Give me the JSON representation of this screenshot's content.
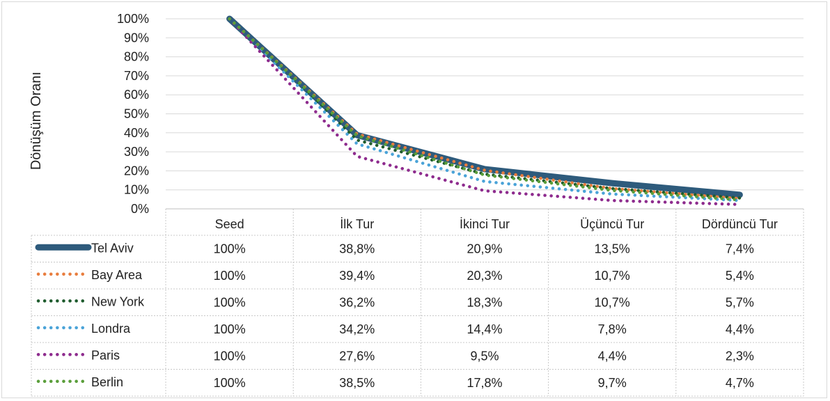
{
  "chart_data": {
    "type": "line",
    "title": "",
    "xlabel": "",
    "ylabel": "Dönüşüm Oranı",
    "ylim": [
      0,
      100
    ],
    "y_ticks": [
      "0%",
      "10%",
      "20%",
      "30%",
      "40%",
      "50%",
      "60%",
      "70%",
      "80%",
      "90%",
      "100%"
    ],
    "categories": [
      "Seed",
      "İlk Tur",
      "İkinci Tur",
      "Üçüncü Tur",
      "Dördüncü Tur"
    ],
    "grid": true,
    "legend_placement": "data-table-left",
    "series": [
      {
        "name": "Tel Aviv",
        "color": "#2e5b7c",
        "style": "solid",
        "values": [
          100,
          38.8,
          20.9,
          13.5,
          7.4
        ],
        "labels": [
          "100%",
          "38,8%",
          "20,9%",
          "13,5%",
          "7,4%"
        ]
      },
      {
        "name": "Bay Area",
        "color": "#e87d3e",
        "style": "dotted",
        "values": [
          100,
          39.4,
          20.3,
          10.7,
          5.4
        ],
        "labels": [
          "100%",
          "39,4%",
          "20,3%",
          "10,7%",
          "5,4%"
        ]
      },
      {
        "name": "New York",
        "color": "#1f5c2e",
        "style": "dotted",
        "values": [
          100,
          36.2,
          18.3,
          10.7,
          5.7
        ],
        "labels": [
          "100%",
          "36,2%",
          "18,3%",
          "10,7%",
          "5,7%"
        ]
      },
      {
        "name": "Londra",
        "color": "#4aa3d8",
        "style": "dotted",
        "values": [
          100,
          34.2,
          14.4,
          7.8,
          4.4
        ],
        "labels": [
          "100%",
          "34,2%",
          "14,4%",
          "7,8%",
          "4,4%"
        ]
      },
      {
        "name": "Paris",
        "color": "#8e2c8e",
        "style": "dotted",
        "values": [
          100,
          27.6,
          9.5,
          4.4,
          2.3
        ],
        "labels": [
          "100%",
          "27,6%",
          "9,5%",
          "4,4%",
          "2,3%"
        ]
      },
      {
        "name": "Berlin",
        "color": "#5a9e3a",
        "style": "dotted",
        "values": [
          100,
          38.5,
          17.8,
          9.7,
          4.7
        ],
        "labels": [
          "100%",
          "38,5%",
          "17,8%",
          "9,7%",
          "4,7%"
        ]
      }
    ]
  }
}
